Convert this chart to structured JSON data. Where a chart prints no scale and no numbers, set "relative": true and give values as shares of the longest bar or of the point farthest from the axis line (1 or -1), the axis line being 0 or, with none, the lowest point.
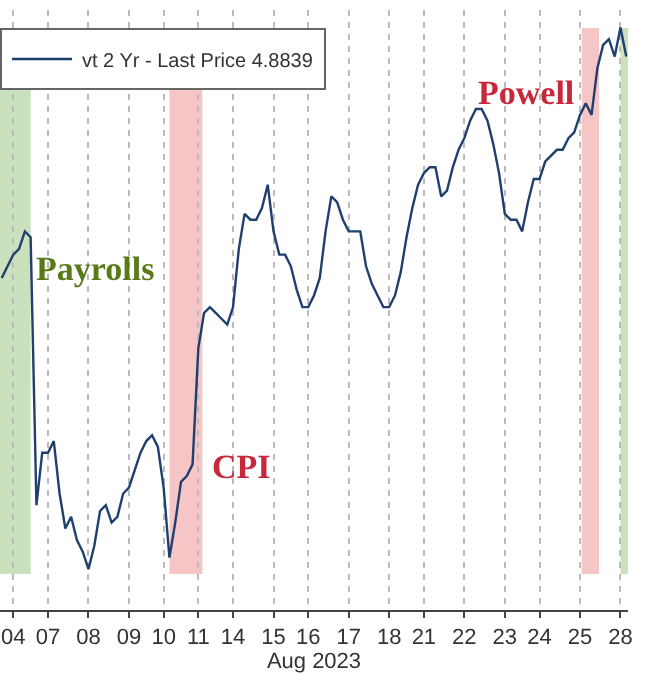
{
  "chart_data": {
    "type": "line",
    "relative": true,
    "xlabel": "Aug 2023",
    "categories": [
      null,
      null,
      "04",
      null,
      null,
      null,
      null,
      null,
      "07",
      null,
      null,
      null,
      null,
      null,
      null,
      "08",
      null,
      null,
      null,
      null,
      null,
      null,
      "09",
      null,
      null,
      null,
      null,
      null,
      "10",
      null,
      null,
      null,
      null,
      null,
      "11",
      null,
      null,
      null,
      null,
      null,
      "14",
      null,
      null,
      null,
      null,
      null,
      null,
      "15",
      null,
      null,
      null,
      null,
      null,
      "16",
      null,
      null,
      null,
      null,
      null,
      null,
      "17",
      null,
      null,
      null,
      null,
      null,
      null,
      "18",
      null,
      null,
      null,
      null,
      null,
      "21",
      null,
      null,
      null,
      null,
      null,
      null,
      "22",
      null,
      null,
      null,
      null,
      null,
      null,
      "23",
      null,
      null,
      null,
      null,
      null,
      "24",
      null,
      null,
      null,
      null,
      null,
      null,
      "25",
      null,
      null,
      null,
      null,
      null,
      null,
      "28",
      null
    ],
    "series": [
      {
        "name": "vt 2 Yr - Last Price 4.8839",
        "color": "#1f3f6e",
        "values": [
          0.57,
          0.59,
          0.61,
          0.62,
          0.65,
          0.64,
          0.18,
          0.27,
          0.27,
          0.29,
          0.2,
          0.14,
          0.16,
          0.12,
          0.1,
          0.07,
          0.11,
          0.17,
          0.18,
          0.15,
          0.16,
          0.2,
          0.21,
          0.24,
          0.27,
          0.29,
          0.3,
          0.28,
          0.21,
          0.09,
          0.15,
          0.22,
          0.23,
          0.25,
          0.45,
          0.51,
          0.52,
          0.51,
          0.5,
          0.49,
          0.52,
          0.62,
          0.68,
          0.67,
          0.67,
          0.69,
          0.73,
          0.65,
          0.61,
          0.61,
          0.59,
          0.55,
          0.52,
          0.52,
          0.54,
          0.57,
          0.65,
          0.71,
          0.7,
          0.67,
          0.65,
          0.65,
          0.65,
          0.59,
          0.56,
          0.54,
          0.52,
          0.52,
          0.54,
          0.58,
          0.64,
          0.69,
          0.73,
          0.75,
          0.76,
          0.76,
          0.71,
          0.72,
          0.76,
          0.79,
          0.81,
          0.84,
          0.86,
          0.86,
          0.84,
          0.8,
          0.75,
          0.68,
          0.67,
          0.67,
          0.65,
          0.7,
          0.74,
          0.74,
          0.77,
          0.78,
          0.79,
          0.79,
          0.81,
          0.82,
          0.85,
          0.87,
          0.85,
          0.93,
          0.97,
          0.98,
          0.95,
          1.0,
          0.95
        ]
      }
    ],
    "annotations": [
      "Payrolls",
      "CPI",
      "Powell"
    ],
    "grid": "x",
    "legend": "top left",
    "marker": "none",
    "line_style": "solid"
  }
}
